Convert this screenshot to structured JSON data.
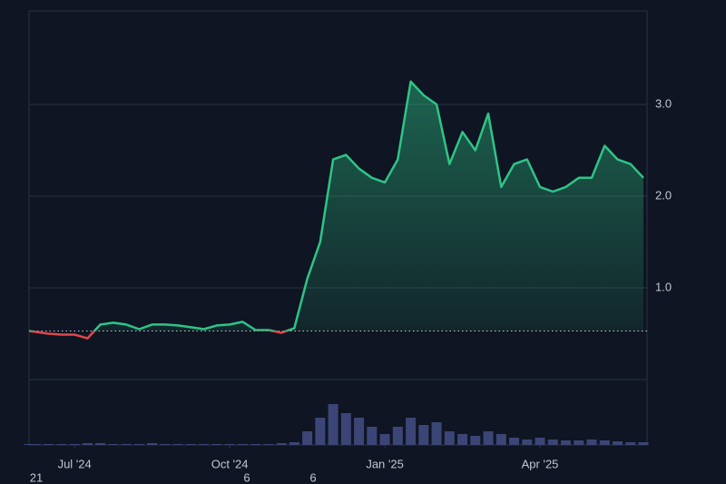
{
  "chart_data": {
    "type": "line",
    "x": [
      0.12,
      0.25,
      0.5,
      0.75,
      1,
      1.25,
      1.5,
      1.75,
      2,
      2.25,
      2.5,
      2.75,
      3,
      3.25,
      3.5,
      3.75,
      4,
      4.25,
      4.5,
      4.75,
      5,
      5.25,
      5.5,
      5.75,
      6,
      6.25,
      6.5,
      6.75,
      7,
      7.25,
      7.5,
      7.75,
      8,
      8.25,
      8.5,
      8.75,
      9,
      9.25,
      9.5,
      9.75,
      10,
      10.25,
      10.5,
      10.75,
      11,
      11.25,
      11.5,
      11.75,
      12
    ],
    "values": [
      0.53,
      0.52,
      0.5,
      0.49,
      0.49,
      0.45,
      0.6,
      0.62,
      0.6,
      0.55,
      0.6,
      0.6,
      0.59,
      0.57,
      0.55,
      0.59,
      0.6,
      0.63,
      0.54,
      0.54,
      0.51,
      0.56,
      1.1,
      1.5,
      2.4,
      2.45,
      2.3,
      2.2,
      2.15,
      2.4,
      3.25,
      3.1,
      3.0,
      2.35,
      2.7,
      2.5,
      2.9,
      2.1,
      2.35,
      2.4,
      2.1,
      2.05,
      2.1,
      2.2,
      2.2,
      2.55,
      2.4,
      2.35,
      2.2
    ],
    "volume": [
      1,
      1,
      1,
      1,
      1,
      2,
      2,
      1,
      1,
      1,
      2,
      1,
      1,
      1,
      1,
      1,
      1,
      1,
      1,
      1,
      2,
      3,
      15,
      30,
      45,
      35,
      30,
      20,
      12,
      20,
      30,
      22,
      25,
      15,
      12,
      10,
      15,
      12,
      8,
      6,
      8,
      6,
      5,
      5,
      6,
      5,
      4,
      3,
      3
    ],
    "volume_ylim": [
      0,
      72
    ],
    "volume_color": "#3b4677",
    "baseline": 0.53,
    "color": "#2ec486",
    "below_color": "#e0474c",
    "xlim": [
      0.12,
      12.07
    ],
    "xticks": [
      {
        "value": 1,
        "label": "Jul '24"
      },
      {
        "value": 4,
        "label": "Oct '24"
      },
      {
        "value": 7,
        "label": "Jan '25"
      },
      {
        "value": 10,
        "label": "Apr '25"
      }
    ],
    "ylim": [
      0,
      4.02
    ],
    "yticks": [
      {
        "value": 1,
        "label": "1.0"
      },
      {
        "value": 2,
        "label": "2.0"
      },
      {
        "value": 3,
        "label": "3.0"
      }
    ],
    "grid": true,
    "footer_fragments": [
      "21",
      "6",
      "6"
    ]
  }
}
